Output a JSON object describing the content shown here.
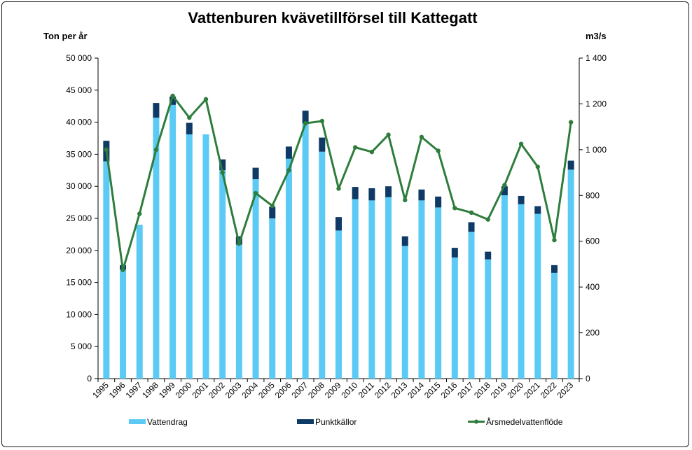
{
  "chart_data": {
    "type": "bar",
    "stacked": true,
    "title": "Vattenburen kvävetillförsel till Kattegatt",
    "y_left_label": "Ton per år",
    "y_right_label": "m3/s",
    "y_left_lim": [
      0,
      50000
    ],
    "y_right_lim": [
      0,
      1400
    ],
    "y_left_ticks": [
      "0",
      "5 000",
      "10 000",
      "15 000",
      "20 000",
      "25 000",
      "30 000",
      "35 000",
      "40 000",
      "45 000",
      "50 000"
    ],
    "y_right_ticks": [
      "0",
      "200",
      "400",
      "600",
      "800",
      "1 000",
      "1 200",
      "1 400"
    ],
    "grid": false,
    "legend_position": "bottom",
    "categories": [
      "1995",
      "1996",
      "1997",
      "1998",
      "1999",
      "2000",
      "2001",
      "2002",
      "2003",
      "2004",
      "2005",
      "2006",
      "2007",
      "2008",
      "2009",
      "2010",
      "2011",
      "2012",
      "2013",
      "2014",
      "2015",
      "2016",
      "2017",
      "2018",
      "2019",
      "2020",
      "2021",
      "2022",
      "2023"
    ],
    "series": [
      {
        "name": "Vattendrag",
        "kind": "bar",
        "axis": "left",
        "color": "#5bcbf5",
        "values": [
          33900,
          17000,
          24000,
          40700,
          42700,
          38100,
          38100,
          32500,
          20900,
          31100,
          25000,
          34300,
          39800,
          35400,
          23100,
          28000,
          27800,
          28300,
          20700,
          27800,
          26700,
          18900,
          22900,
          18600,
          28600,
          27200,
          25700,
          16500,
          32600
        ]
      },
      {
        "name": "Punktkällor",
        "kind": "bar",
        "axis": "left",
        "color": "#0f3a66",
        "values": [
          3200,
          700,
          0,
          2300,
          1300,
          1800,
          0,
          1700,
          1300,
          1800,
          1800,
          1900,
          2000,
          2200,
          2100,
          1900,
          1900,
          1700,
          1500,
          1700,
          1700,
          1500,
          1500,
          1200,
          1400,
          1300,
          1200,
          1200,
          1400
        ]
      },
      {
        "name": "Årsmedelvattenflöde",
        "kind": "line",
        "axis": "right",
        "color": "#2e7d3c",
        "values": [
          1000,
          475,
          720,
          1000,
          1235,
          1140,
          1220,
          900,
          590,
          810,
          755,
          910,
          1115,
          1125,
          830,
          1010,
          990,
          1065,
          780,
          1055,
          995,
          745,
          725,
          695,
          845,
          1025,
          925,
          605,
          1120
        ]
      }
    ]
  }
}
